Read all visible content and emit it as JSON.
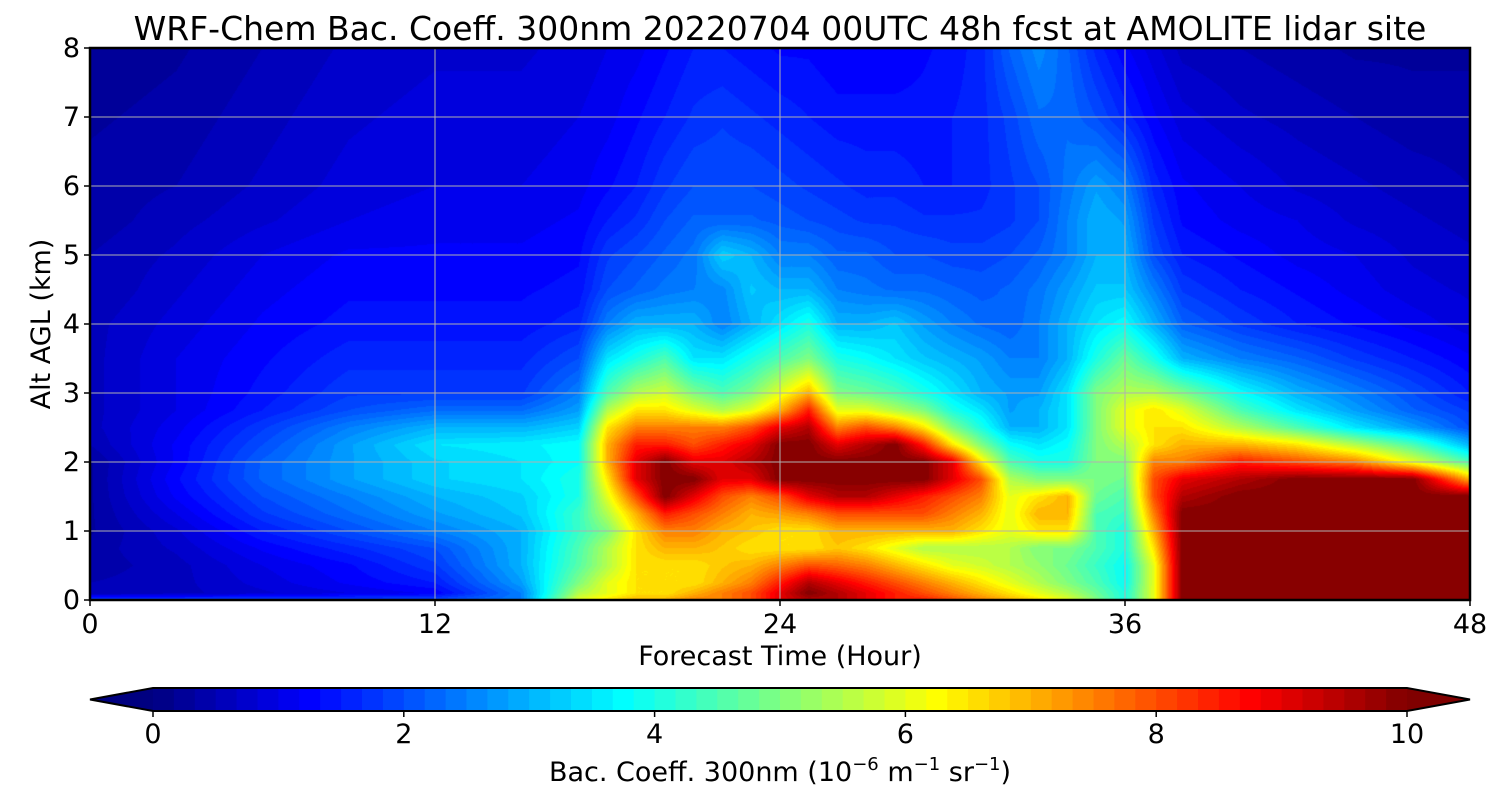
{
  "chart_data": {
    "type": "heatmap",
    "title": "WRF-Chem Bac. Coeff. 300nm  20220704 00UTC 48h fcst at AMOLITE lidar site",
    "xlabel": "Forecast Time (Hour)",
    "ylabel": "Alt AGL (km)",
    "xlim": [
      0,
      48
    ],
    "ylim": [
      0,
      8
    ],
    "xticks": [
      "0",
      "12",
      "24",
      "36",
      "48"
    ],
    "yticks": [
      "0",
      "1",
      "2",
      "3",
      "4",
      "5",
      "6",
      "7",
      "8"
    ],
    "grid": true,
    "colorbar": {
      "label_main": "Bac. Coeff. 300nm  (10",
      "label_exp1": "−6",
      "label_mid": " m",
      "label_exp2": "−1",
      "label_mid2": " sr",
      "label_exp3": "−1",
      "label_end": ")",
      "vmin": 0,
      "vmax": 10,
      "ticks": [
        "0",
        "2",
        "4",
        "6",
        "8",
        "10"
      ],
      "extend": "both",
      "colormap": "jet"
    },
    "x": [
      0,
      3,
      6,
      9,
      12,
      15,
      17,
      18,
      19,
      20,
      21,
      22,
      23,
      24,
      25,
      26,
      27,
      28,
      29,
      30,
      31,
      32,
      33,
      34,
      35,
      36,
      37,
      38,
      40,
      42,
      44,
      46,
      48
    ],
    "y": [
      0,
      0.1,
      0.25,
      0.5,
      0.75,
      1,
      1.25,
      1.5,
      1.75,
      2,
      2.25,
      2.5,
      2.75,
      3,
      3.5,
      4,
      4.5,
      5,
      5.5,
      6,
      7,
      8
    ],
    "z": [
      [
        2.0,
        2.0,
        2.0,
        2.0,
        2.0,
        2.5,
        6.0,
        6.5,
        7.0,
        7.0,
        7.5,
        7.5,
        8.0,
        9.0,
        9.5,
        9.5,
        9.0,
        8.5,
        8.5,
        8.0,
        7.5,
        7.0,
        6.5,
        6.0,
        5.0,
        4.0,
        6.0,
        10.0,
        10.0,
        10.0,
        10.0,
        10.0,
        10.0
      ],
      [
        0.5,
        0.6,
        0.8,
        1.0,
        1.2,
        2.5,
        5.5,
        6.0,
        6.5,
        6.5,
        7.0,
        7.5,
        8.0,
        9.0,
        10.0,
        9.5,
        9.0,
        8.5,
        8.0,
        7.5,
        7.0,
        6.5,
        6.0,
        5.5,
        4.8,
        4.0,
        6.0,
        10.0,
        10.0,
        10.0,
        10.0,
        10.0,
        10.0
      ],
      [
        0.5,
        0.6,
        0.9,
        1.2,
        1.5,
        2.8,
        5.0,
        6.0,
        6.5,
        6.5,
        6.5,
        7.0,
        7.5,
        8.5,
        9.5,
        9.0,
        8.5,
        8.0,
        7.5,
        7.0,
        6.5,
        6.0,
        5.5,
        5.0,
        4.5,
        3.8,
        6.0,
        10.0,
        10.0,
        10.0,
        10.0,
        10.0,
        10.0
      ],
      [
        0.4,
        0.6,
        1.0,
        1.3,
        1.8,
        3.0,
        4.6,
        5.5,
        6.5,
        6.5,
        6.5,
        6.8,
        7.0,
        7.5,
        8.0,
        7.8,
        7.5,
        7.0,
        6.5,
        6.0,
        5.8,
        5.5,
        5.2,
        4.8,
        4.3,
        3.8,
        6.0,
        10.0,
        10.0,
        10.0,
        10.0,
        10.0,
        10.0
      ],
      [
        0.4,
        0.7,
        1.2,
        1.6,
        2.0,
        3.0,
        4.5,
        5.5,
        6.5,
        7.0,
        7.0,
        6.8,
        6.5,
        6.5,
        6.5,
        6.8,
        6.5,
        6.0,
        5.5,
        5.5,
        5.5,
        5.5,
        5.0,
        5.0,
        4.5,
        4.0,
        6.5,
        10.0,
        10.0,
        10.0,
        10.0,
        10.0,
        10.0
      ],
      [
        0.3,
        0.8,
        1.5,
        2.0,
        2.5,
        3.0,
        4.3,
        5.0,
        6.5,
        7.5,
        7.5,
        7.0,
        6.8,
        6.5,
        6.5,
        7.0,
        7.0,
        7.0,
        7.0,
        7.0,
        6.5,
        6.0,
        6.5,
        6.5,
        4.5,
        4.0,
        7.0,
        10.0,
        10.0,
        10.0,
        10.0,
        10.0,
        10.0
      ],
      [
        0.3,
        1.0,
        1.8,
        2.3,
        2.8,
        3.2,
        4.3,
        5.5,
        7.0,
        8.5,
        8.0,
        7.5,
        7.0,
        7.2,
        7.5,
        8.0,
        8.0,
        8.0,
        8.0,
        7.5,
        7.0,
        6.0,
        7.0,
        7.0,
        4.5,
        4.3,
        7.5,
        10.0,
        10.0,
        10.0,
        10.0,
        10.0,
        10.0
      ],
      [
        0.3,
        1.2,
        2.0,
        2.5,
        3.0,
        3.3,
        4.0,
        6.0,
        8.0,
        10.0,
        9.0,
        8.0,
        7.5,
        8.0,
        9.0,
        9.5,
        9.5,
        9.0,
        8.5,
        8.0,
        7.5,
        6.0,
        6.5,
        7.0,
        4.8,
        4.5,
        8.0,
        9.5,
        10.0,
        10.0,
        10.0,
        10.0,
        10.0
      ],
      [
        0.3,
        1.3,
        2.2,
        2.8,
        3.3,
        3.5,
        4.0,
        6.5,
        9.0,
        10.0,
        10.0,
        9.0,
        9.0,
        10.0,
        10.0,
        10.0,
        10.0,
        10.0,
        10.0,
        9.0,
        8.0,
        5.5,
        5.0,
        5.0,
        5.0,
        4.8,
        8.0,
        9.0,
        9.5,
        10.0,
        10.0,
        10.0,
        7.0
      ],
      [
        0.3,
        1.2,
        2.2,
        2.8,
        3.3,
        3.5,
        3.8,
        7.0,
        9.0,
        10.0,
        9.0,
        9.0,
        9.5,
        10.0,
        10.0,
        10.0,
        10.0,
        10.0,
        10.0,
        9.0,
        6.5,
        4.5,
        4.0,
        4.0,
        5.0,
        5.0,
        7.5,
        7.5,
        8.5,
        8.0,
        7.5,
        6.0,
        4.5
      ],
      [
        0.5,
        1.2,
        2.0,
        2.8,
        3.5,
        3.6,
        3.8,
        7.0,
        8.5,
        8.5,
        8.0,
        8.5,
        9.0,
        10.0,
        10.0,
        9.0,
        9.5,
        10.0,
        8.5,
        6.5,
        5.0,
        3.8,
        3.5,
        3.8,
        5.0,
        5.5,
        6.5,
        7.0,
        7.0,
        6.5,
        5.5,
        4.5,
        3.0
      ],
      [
        0.6,
        1.1,
        1.8,
        2.5,
        3.0,
        3.0,
        3.3,
        6.5,
        7.5,
        7.5,
        7.5,
        7.5,
        8.0,
        9.0,
        9.5,
        7.5,
        8.0,
        7.5,
        6.5,
        5.0,
        4.0,
        3.0,
        3.0,
        3.5,
        5.0,
        6.0,
        6.5,
        6.5,
        5.5,
        4.5,
        3.5,
        2.8,
        2.0
      ],
      [
        0.6,
        1.0,
        1.5,
        2.0,
        2.3,
        2.3,
        2.8,
        5.5,
        6.5,
        6.5,
        6.0,
        5.5,
        6.0,
        7.0,
        8.5,
        6.0,
        6.0,
        5.5,
        5.0,
        4.0,
        3.5,
        2.8,
        3.0,
        3.5,
        5.0,
        6.0,
        6.5,
        6.0,
        4.5,
        3.5,
        2.8,
        2.2,
        1.8
      ],
      [
        0.6,
        1.0,
        1.4,
        1.8,
        1.8,
        1.8,
        2.5,
        4.5,
        5.5,
        5.8,
        5.0,
        4.5,
        5.0,
        6.0,
        7.0,
        5.0,
        4.8,
        4.5,
        4.0,
        3.5,
        3.0,
        2.8,
        2.8,
        3.5,
        5.0,
        5.5,
        5.5,
        5.0,
        3.8,
        3.0,
        2.5,
        2.0,
        1.5
      ],
      [
        0.6,
        1.0,
        1.3,
        1.6,
        1.6,
        1.6,
        2.0,
        3.5,
        4.0,
        4.5,
        3.5,
        3.5,
        4.0,
        4.5,
        5.0,
        4.0,
        3.8,
        3.5,
        3.2,
        3.0,
        2.8,
        2.5,
        2.5,
        3.0,
        4.0,
        4.8,
        4.0,
        3.0,
        2.5,
        2.2,
        1.8,
        1.5,
        1.2
      ],
      [
        0.6,
        0.9,
        1.2,
        1.4,
        1.4,
        1.4,
        1.6,
        2.5,
        3.0,
        3.0,
        3.0,
        2.5,
        3.0,
        3.5,
        4.0,
        3.0,
        3.0,
        3.2,
        2.8,
        2.5,
        2.3,
        2.2,
        2.5,
        3.0,
        3.5,
        3.8,
        3.0,
        2.2,
        1.8,
        1.5,
        1.3,
        1.1,
        0.9
      ],
      [
        0.5,
        0.8,
        1.1,
        1.3,
        1.3,
        1.3,
        1.4,
        2.0,
        2.2,
        2.4,
        2.5,
        2.6,
        3.2,
        3.0,
        3.0,
        2.5,
        2.4,
        2.3,
        2.3,
        2.2,
        2.1,
        2.2,
        2.4,
        2.8,
        3.2,
        3.2,
        2.5,
        1.8,
        1.5,
        1.3,
        1.1,
        0.9,
        0.8
      ],
      [
        0.5,
        0.7,
        1.0,
        1.2,
        1.2,
        1.2,
        1.3,
        1.8,
        2.0,
        2.2,
        2.4,
        3.3,
        3.0,
        2.5,
        2.5,
        2.2,
        2.2,
        2.0,
        2.0,
        1.9,
        1.9,
        2.0,
        2.2,
        2.5,
        3.0,
        3.0,
        2.0,
        1.5,
        1.3,
        1.1,
        1.0,
        0.8,
        0.7
      ],
      [
        0.4,
        0.6,
        0.8,
        1.0,
        1.1,
        1.1,
        1.2,
        1.5,
        1.7,
        2.0,
        2.2,
        2.2,
        2.2,
        2.1,
        2.0,
        1.9,
        1.8,
        1.8,
        1.7,
        1.7,
        1.7,
        1.8,
        2.0,
        2.5,
        3.0,
        2.8,
        1.8,
        1.3,
        1.1,
        1.0,
        0.8,
        0.7,
        0.6
      ],
      [
        0.4,
        0.5,
        0.7,
        0.9,
        1.0,
        1.0,
        1.1,
        1.3,
        1.5,
        1.8,
        2.0,
        2.0,
        2.0,
        1.9,
        1.8,
        1.7,
        1.6,
        1.6,
        1.5,
        1.5,
        1.6,
        1.8,
        2.0,
        2.4,
        2.8,
        2.5,
        1.6,
        1.2,
        1.0,
        0.8,
        0.7,
        0.6,
        0.5
      ],
      [
        0.3,
        0.4,
        0.6,
        0.8,
        0.9,
        0.9,
        1.0,
        1.1,
        1.3,
        1.5,
        1.7,
        1.8,
        1.7,
        1.6,
        1.5,
        1.4,
        1.4,
        1.4,
        1.4,
        1.5,
        1.6,
        1.9,
        2.3,
        2.3,
        2.0,
        1.6,
        1.2,
        0.9,
        0.7,
        0.6,
        0.5,
        0.4,
        0.4
      ],
      [
        0.2,
        0.3,
        0.5,
        0.7,
        0.8,
        0.8,
        0.9,
        1.0,
        1.1,
        1.3,
        1.5,
        1.5,
        1.4,
        1.3,
        1.3,
        1.2,
        1.2,
        1.2,
        1.3,
        1.4,
        1.6,
        2.2,
        2.6,
        2.2,
        1.6,
        1.2,
        0.9,
        0.6,
        0.5,
        0.4,
        0.3,
        0.3,
        0.3
      ]
    ]
  }
}
